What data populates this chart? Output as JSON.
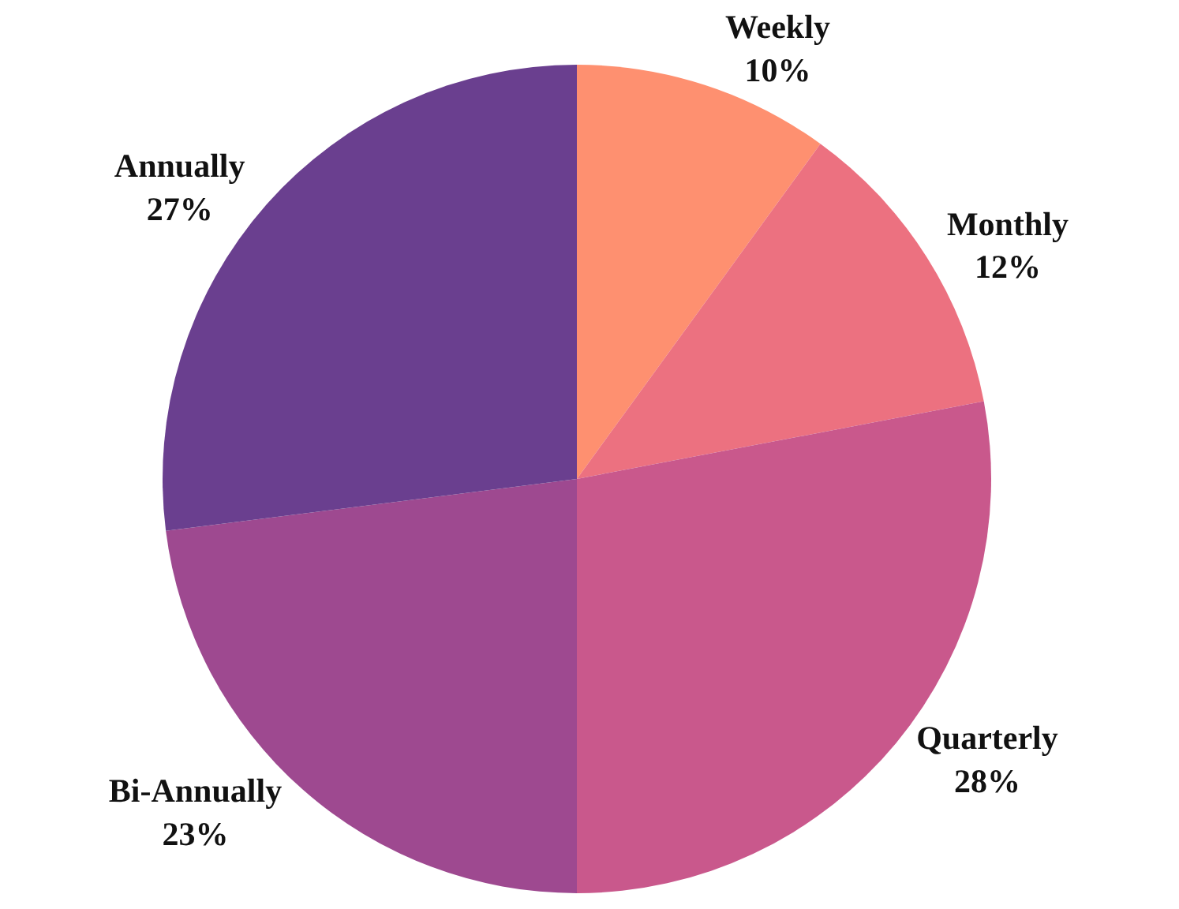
{
  "chart_data": {
    "type": "pie",
    "categories": [
      "Weekly",
      "Monthly",
      "Quarterly",
      "Bi-Annually",
      "Annually"
    ],
    "values": [
      10,
      12,
      28,
      23,
      27
    ],
    "value_labels": [
      "10%",
      "12%",
      "28%",
      "23%",
      "27%"
    ],
    "colors": [
      "#fe9070",
      "#ec7180",
      "#c9588c",
      "#9e4990",
      "#6a3f8f"
    ],
    "legend": false
  }
}
